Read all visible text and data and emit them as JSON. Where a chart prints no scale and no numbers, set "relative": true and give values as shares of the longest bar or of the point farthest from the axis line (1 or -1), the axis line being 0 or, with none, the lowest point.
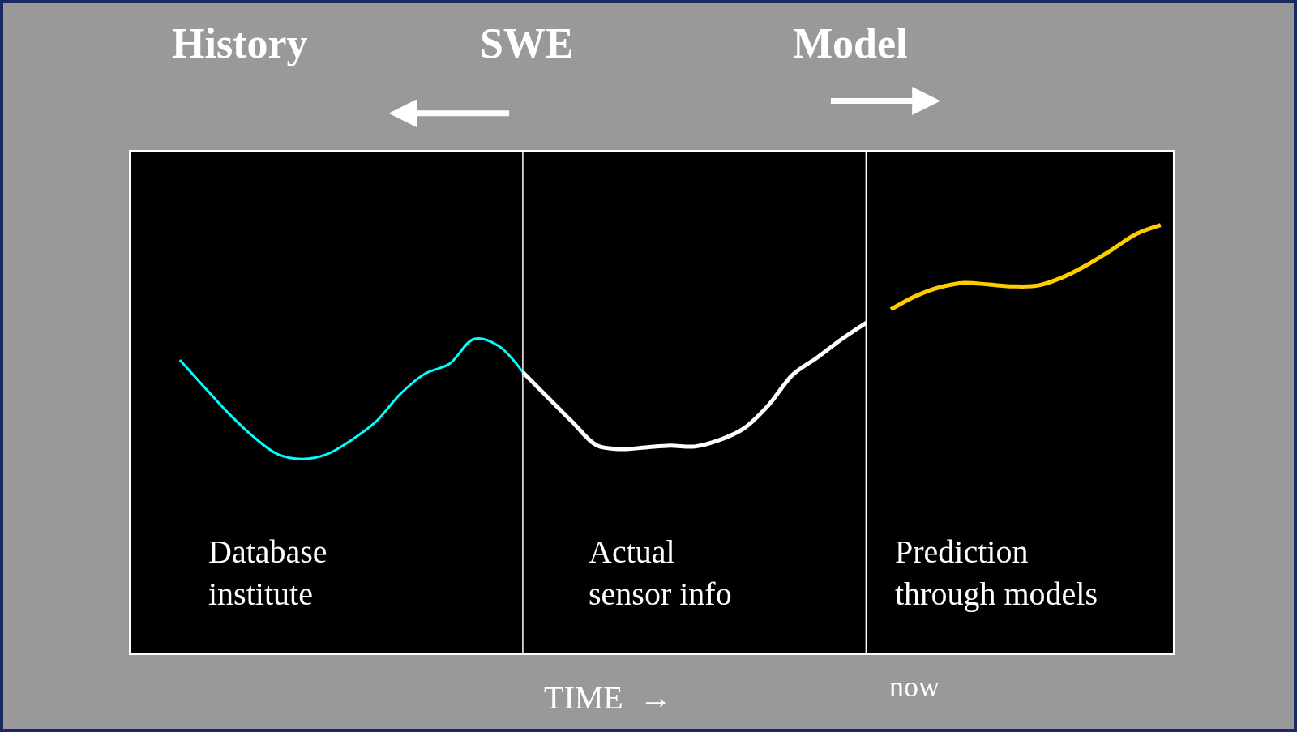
{
  "chart_data": {
    "type": "line",
    "relative": true,
    "categories": [
      null,
      null,
      null,
      null,
      null,
      null,
      null,
      null,
      null,
      null,
      null,
      null,
      null,
      null,
      null,
      null,
      null,
      null,
      null,
      null,
      null,
      null,
      null,
      null,
      null,
      null,
      null,
      null,
      null,
      null,
      null,
      null,
      null,
      null,
      null,
      null,
      null,
      null,
      null,
      null,
      null,
      null,
      null
    ],
    "series": [
      {
        "color": "#00ffff",
        "values": [
          null,
          null,
          0.685,
          0.622,
          0.56,
          0.506,
          0.465,
          0.454,
          0.465,
          0.498,
          0.541,
          0.606,
          0.653,
          0.676,
          0.734,
          0.718,
          0.656,
          null,
          null,
          null,
          null,
          null,
          null,
          null,
          null,
          null,
          null,
          null,
          null,
          null,
          null,
          null,
          null,
          null,
          null,
          null,
          null,
          null,
          null,
          null,
          null,
          null,
          null
        ]
      },
      {
        "color": "#ffffff",
        "values": [
          null,
          null,
          null,
          null,
          null,
          null,
          null,
          null,
          null,
          null,
          null,
          null,
          null,
          null,
          null,
          null,
          0.656,
          0.598,
          0.541,
          0.486,
          0.477,
          0.481,
          0.485,
          0.483,
          0.498,
          0.525,
          0.579,
          0.651,
          0.691,
          0.734,
          0.772,
          null,
          null,
          null,
          null,
          null,
          null,
          null,
          null,
          null,
          null,
          null,
          null
        ]
      },
      {
        "color": "#ffcc00",
        "values": [
          null,
          null,
          null,
          null,
          null,
          null,
          null,
          null,
          null,
          null,
          null,
          null,
          null,
          null,
          null,
          null,
          null,
          null,
          null,
          null,
          null,
          null,
          null,
          null,
          null,
          null,
          null,
          null,
          null,
          null,
          null,
          0.803,
          0.834,
          0.855,
          0.865,
          0.861,
          0.857,
          0.859,
          0.878,
          0.907,
          0.942,
          0.979,
          1
        ]
      }
    ],
    "annotations": [
      "History",
      "SWE",
      "Model",
      "Database\ninstitute",
      "Actual\nsensor info",
      "Prediction\nthrough models",
      "TIME  →",
      "now"
    ],
    "marker": "none",
    "line_style": "solid"
  }
}
